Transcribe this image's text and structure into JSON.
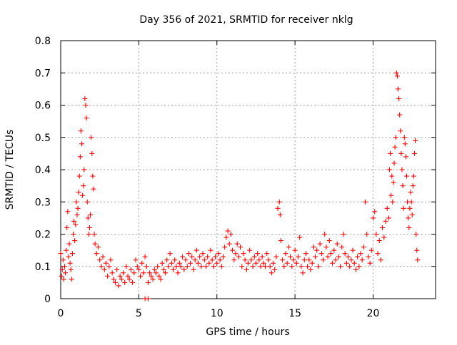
{
  "chart_data": {
    "type": "scatter",
    "title": "Day 356 of 2021, SRMTID for receiver nklg",
    "xlabel": "GPS time / hours",
    "ylabel": "SRMTID / TECUs",
    "xlim": [
      0,
      24
    ],
    "ylim": [
      0,
      0.8
    ],
    "xticks": [
      0,
      5,
      10,
      15,
      20
    ],
    "xtick_labels": [
      "0",
      "5",
      "10",
      "15",
      "20"
    ],
    "yticks": [
      0,
      0.1,
      0.2,
      0.3,
      0.4,
      0.5,
      0.6,
      0.7,
      0.8
    ],
    "ytick_labels": [
      "0",
      "0.1",
      "0.2",
      "0.3",
      "0.4",
      "0.5",
      "0.6",
      "0.7",
      "0.8"
    ],
    "grid": true,
    "marker": "+",
    "color": "#ff0000",
    "series": [
      {
        "name": "SRMTID",
        "points": [
          [
            0.0,
            0.14
          ],
          [
            0.05,
            0.07
          ],
          [
            0.1,
            0.09
          ],
          [
            0.15,
            0.12
          ],
          [
            0.2,
            0.06
          ],
          [
            0.25,
            0.1
          ],
          [
            0.3,
            0.08
          ],
          [
            0.35,
            0.15
          ],
          [
            0.4,
            0.22
          ],
          [
            0.45,
            0.27
          ],
          [
            0.5,
            0.13
          ],
          [
            0.55,
            0.17
          ],
          [
            0.6,
            0.11
          ],
          [
            0.65,
            0.09
          ],
          [
            0.7,
            0.06
          ],
          [
            0.75,
            0.14
          ],
          [
            0.8,
            0.2
          ],
          [
            0.85,
            0.24
          ],
          [
            0.9,
            0.18
          ],
          [
            0.95,
            0.23
          ],
          [
            1.0,
            0.3
          ],
          [
            1.05,
            0.26
          ],
          [
            1.1,
            0.28
          ],
          [
            1.15,
            0.33
          ],
          [
            1.2,
            0.38
          ],
          [
            1.25,
            0.44
          ],
          [
            1.3,
            0.52
          ],
          [
            1.35,
            0.48
          ],
          [
            1.4,
            0.32
          ],
          [
            1.45,
            0.35
          ],
          [
            1.5,
            0.4
          ],
          [
            1.55,
            0.62
          ],
          [
            1.6,
            0.6
          ],
          [
            1.65,
            0.56
          ],
          [
            1.7,
            0.3
          ],
          [
            1.75,
            0.25
          ],
          [
            1.8,
            0.2
          ],
          [
            1.85,
            0.22
          ],
          [
            1.9,
            0.26
          ],
          [
            1.95,
            0.5
          ],
          [
            2.0,
            0.45
          ],
          [
            2.05,
            0.38
          ],
          [
            2.1,
            0.34
          ],
          [
            2.15,
            0.2
          ],
          [
            2.2,
            0.17
          ],
          [
            2.3,
            0.14
          ],
          [
            2.4,
            0.16
          ],
          [
            2.5,
            0.12
          ],
          [
            2.6,
            0.1
          ],
          [
            2.7,
            0.13
          ],
          [
            2.8,
            0.09
          ],
          [
            2.9,
            0.11
          ],
          [
            3.0,
            0.07
          ],
          [
            3.1,
            0.1
          ],
          [
            3.2,
            0.12
          ],
          [
            3.3,
            0.08
          ],
          [
            3.4,
            0.06
          ],
          [
            3.5,
            0.05
          ],
          [
            3.6,
            0.09
          ],
          [
            3.7,
            0.04
          ],
          [
            3.8,
            0.07
          ],
          [
            3.9,
            0.06
          ],
          [
            4.0,
            0.08
          ],
          [
            4.1,
            0.05
          ],
          [
            4.2,
            0.1
          ],
          [
            4.3,
            0.07
          ],
          [
            4.4,
            0.06
          ],
          [
            4.5,
            0.09
          ],
          [
            4.6,
            0.05
          ],
          [
            4.7,
            0.08
          ],
          [
            4.8,
            0.12
          ],
          [
            4.9,
            0.1
          ],
          [
            5.0,
            0.09
          ],
          [
            5.1,
            0.07
          ],
          [
            5.2,
            0.11
          ],
          [
            5.3,
            0.08
          ],
          [
            5.4,
            0.13
          ],
          [
            5.5,
            0.1
          ],
          [
            5.6,
            0.05
          ],
          [
            5.7,
            0.08
          ],
          [
            5.8,
            0.07
          ],
          [
            5.9,
            0.06
          ],
          [
            6.0,
            0.09
          ],
          [
            6.1,
            0.08
          ],
          [
            6.2,
            0.1
          ],
          [
            6.3,
            0.07
          ],
          [
            6.4,
            0.06
          ],
          [
            6.5,
            0.11
          ],
          [
            6.6,
            0.09
          ],
          [
            6.7,
            0.08
          ],
          [
            6.8,
            0.12
          ],
          [
            6.9,
            0.1
          ],
          [
            7.0,
            0.14
          ],
          [
            7.1,
            0.11
          ],
          [
            7.2,
            0.09
          ],
          [
            7.3,
            0.12
          ],
          [
            7.4,
            0.1
          ],
          [
            7.5,
            0.08
          ],
          [
            7.6,
            0.11
          ],
          [
            7.7,
            0.1
          ],
          [
            7.8,
            0.13
          ],
          [
            7.9,
            0.09
          ],
          [
            8.0,
            0.12
          ],
          [
            8.1,
            0.1
          ],
          [
            8.2,
            0.14
          ],
          [
            8.3,
            0.11
          ],
          [
            8.4,
            0.13
          ],
          [
            8.5,
            0.09
          ],
          [
            8.6,
            0.12
          ],
          [
            8.7,
            0.15
          ],
          [
            8.8,
            0.11
          ],
          [
            8.9,
            0.13
          ],
          [
            9.0,
            0.1
          ],
          [
            9.1,
            0.14
          ],
          [
            9.2,
            0.12
          ],
          [
            9.3,
            0.1
          ],
          [
            9.4,
            0.13
          ],
          [
            9.5,
            0.11
          ],
          [
            9.6,
            0.15
          ],
          [
            9.7,
            0.12
          ],
          [
            9.8,
            0.1
          ],
          [
            9.9,
            0.13
          ],
          [
            10.0,
            0.11
          ],
          [
            10.1,
            0.14
          ],
          [
            10.2,
            0.12
          ],
          [
            10.3,
            0.1
          ],
          [
            10.4,
            0.13
          ],
          [
            10.5,
            0.16
          ],
          [
            10.6,
            0.19
          ],
          [
            10.7,
            0.21
          ],
          [
            10.8,
            0.17
          ],
          [
            10.9,
            0.2
          ],
          [
            11.0,
            0.15
          ],
          [
            11.1,
            0.12
          ],
          [
            11.2,
            0.14
          ],
          [
            11.3,
            0.17
          ],
          [
            11.4,
            0.13
          ],
          [
            11.5,
            0.16
          ],
          [
            11.6,
            0.1
          ],
          [
            11.7,
            0.14
          ],
          [
            11.8,
            0.12
          ],
          [
            11.9,
            0.09
          ],
          [
            12.0,
            0.11
          ],
          [
            12.1,
            0.15
          ],
          [
            12.2,
            0.12
          ],
          [
            12.3,
            0.1
          ],
          [
            12.4,
            0.13
          ],
          [
            12.5,
            0.11
          ],
          [
            12.6,
            0.14
          ],
          [
            12.7,
            0.12
          ],
          [
            12.8,
            0.1
          ],
          [
            12.9,
            0.13
          ],
          [
            13.0,
            0.11
          ],
          [
            13.1,
            0.1
          ],
          [
            13.2,
            0.14
          ],
          [
            13.3,
            0.12
          ],
          [
            13.4,
            0.1
          ],
          [
            13.5,
            0.08
          ],
          [
            13.6,
            0.11
          ],
          [
            13.7,
            0.09
          ],
          [
            13.8,
            0.13
          ],
          [
            13.9,
            0.28
          ],
          [
            14.0,
            0.3
          ],
          [
            14.05,
            0.26
          ],
          [
            14.1,
            0.18
          ],
          [
            14.2,
            0.12
          ],
          [
            14.3,
            0.1
          ],
          [
            14.4,
            0.14
          ],
          [
            14.5,
            0.11
          ],
          [
            14.6,
            0.16
          ],
          [
            14.7,
            0.13
          ],
          [
            14.8,
            0.1
          ],
          [
            14.9,
            0.12
          ],
          [
            15.0,
            0.15
          ],
          [
            15.1,
            0.11
          ],
          [
            15.2,
            0.13
          ],
          [
            15.3,
            0.19
          ],
          [
            15.4,
            0.1
          ],
          [
            15.5,
            0.08
          ],
          [
            15.6,
            0.12
          ],
          [
            15.7,
            0.14
          ],
          [
            15.8,
            0.1
          ],
          [
            15.9,
            0.12
          ],
          [
            16.0,
            0.09
          ],
          [
            16.1,
            0.11
          ],
          [
            16.2,
            0.16
          ],
          [
            16.3,
            0.13
          ],
          [
            16.4,
            0.15
          ],
          [
            16.5,
            0.1
          ],
          [
            16.6,
            0.17
          ],
          [
            16.7,
            0.14
          ],
          [
            16.8,
            0.12
          ],
          [
            16.9,
            0.2
          ],
          [
            17.0,
            0.16
          ],
          [
            17.1,
            0.13
          ],
          [
            17.2,
            0.18
          ],
          [
            17.3,
            0.14
          ],
          [
            17.4,
            0.11
          ],
          [
            17.5,
            0.15
          ],
          [
            17.6,
            0.12
          ],
          [
            17.7,
            0.17
          ],
          [
            17.8,
            0.13
          ],
          [
            17.9,
            0.1
          ],
          [
            18.0,
            0.16
          ],
          [
            18.1,
            0.2
          ],
          [
            18.2,
            0.14
          ],
          [
            18.3,
            0.11
          ],
          [
            18.4,
            0.13
          ],
          [
            18.5,
            0.1
          ],
          [
            18.6,
            0.12
          ],
          [
            18.7,
            0.15
          ],
          [
            18.8,
            0.11
          ],
          [
            18.9,
            0.09
          ],
          [
            19.0,
            0.13
          ],
          [
            19.1,
            0.1
          ],
          [
            19.2,
            0.14
          ],
          [
            19.3,
            0.12
          ],
          [
            19.4,
            0.16
          ],
          [
            19.5,
            0.3
          ],
          [
            19.6,
            0.2
          ],
          [
            19.7,
            0.13
          ],
          [
            19.8,
            0.11
          ],
          [
            19.9,
            0.15
          ],
          [
            20.0,
            0.25
          ],
          [
            20.1,
            0.27
          ],
          [
            20.2,
            0.2
          ],
          [
            20.3,
            0.14
          ],
          [
            20.4,
            0.18
          ],
          [
            20.5,
            0.12
          ],
          [
            20.6,
            0.22
          ],
          [
            20.7,
            0.19
          ],
          [
            20.8,
            0.24
          ],
          [
            20.9,
            0.28
          ],
          [
            21.0,
            0.25
          ],
          [
            21.05,
            0.4
          ],
          [
            21.1,
            0.45
          ],
          [
            21.15,
            0.32
          ],
          [
            21.2,
            0.38
          ],
          [
            21.25,
            0.3
          ],
          [
            21.3,
            0.36
          ],
          [
            21.35,
            0.42
          ],
          [
            21.4,
            0.47
          ],
          [
            21.45,
            0.5
          ],
          [
            21.5,
            0.7
          ],
          [
            21.55,
            0.69
          ],
          [
            21.6,
            0.65
          ],
          [
            21.65,
            0.62
          ],
          [
            21.7,
            0.57
          ],
          [
            21.75,
            0.52
          ],
          [
            21.8,
            0.45
          ],
          [
            21.85,
            0.4
          ],
          [
            21.9,
            0.35
          ],
          [
            21.95,
            0.28
          ],
          [
            22.0,
            0.5
          ],
          [
            22.05,
            0.48
          ],
          [
            22.1,
            0.44
          ],
          [
            22.15,
            0.38
          ],
          [
            22.2,
            0.3
          ],
          [
            22.25,
            0.25
          ],
          [
            22.3,
            0.22
          ],
          [
            22.35,
            0.28
          ],
          [
            22.4,
            0.33
          ],
          [
            22.45,
            0.3
          ],
          [
            22.5,
            0.26
          ],
          [
            22.55,
            0.35
          ],
          [
            22.6,
            0.38
          ],
          [
            22.65,
            0.45
          ],
          [
            22.7,
            0.49
          ],
          [
            22.75,
            0.2
          ],
          [
            22.8,
            0.15
          ],
          [
            22.85,
            0.12
          ],
          [
            5.4,
            0.0
          ],
          [
            5.6,
            0.0
          ]
        ]
      }
    ]
  }
}
